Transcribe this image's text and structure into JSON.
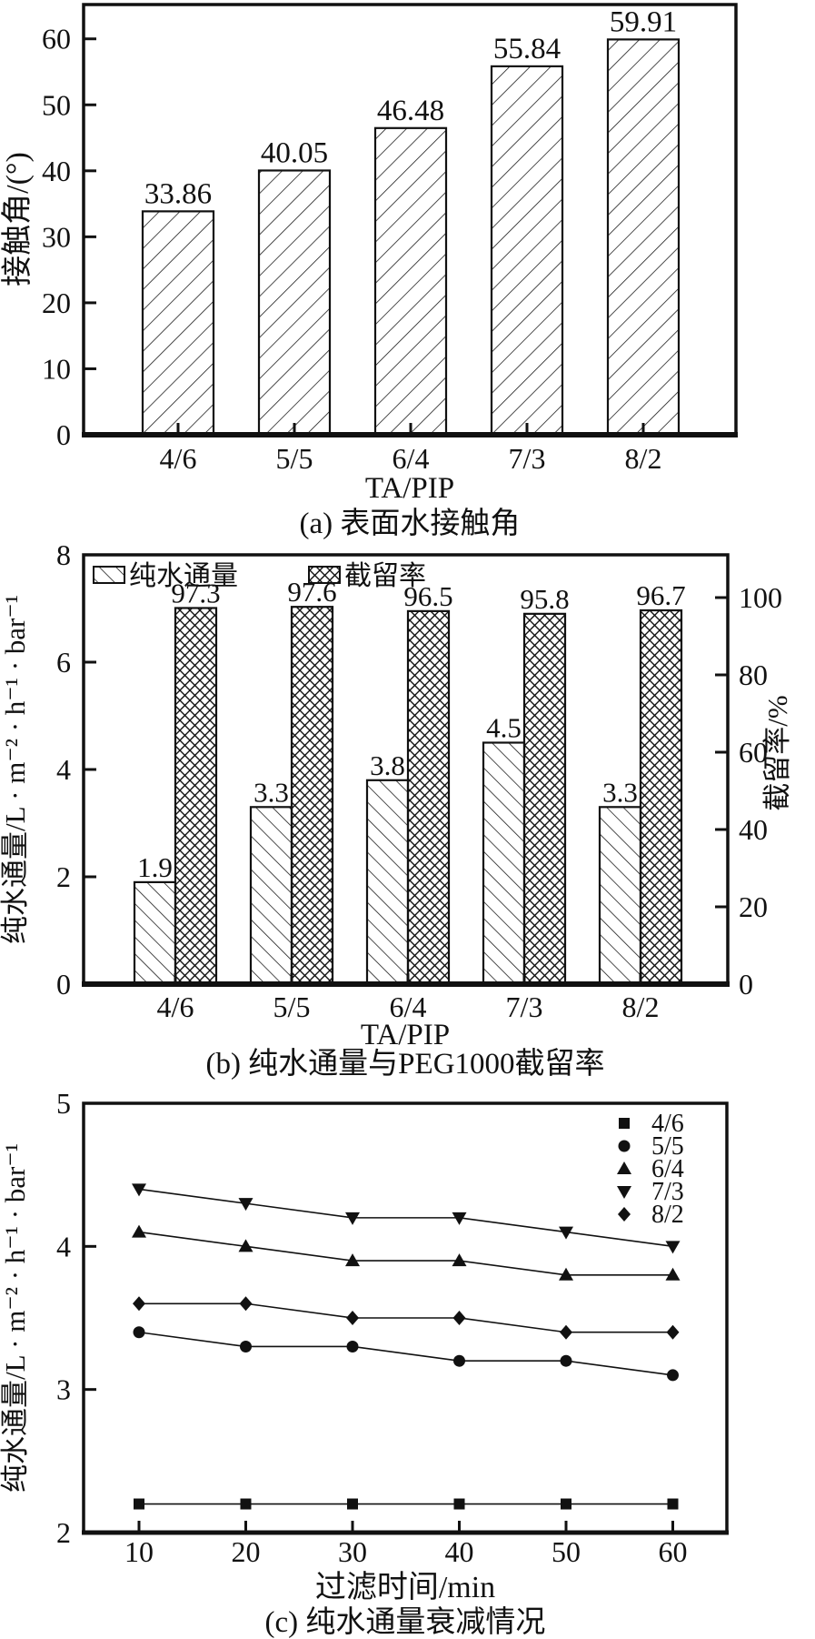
{
  "figure": {
    "description_labels": {
      "caption_a": "(a) 表面水接触角",
      "caption_b": "(b) 纯水通量与PEG1000截留率",
      "caption_c": "(c) 纯水通量衰减情况"
    }
  },
  "colors": {
    "ink": "#111111",
    "background": "#ffffff"
  },
  "chart_data": [
    {
      "id": "a",
      "type": "bar",
      "title": "(a) 表面水接触角",
      "categories": [
        "4/6",
        "5/5",
        "6/4",
        "7/3",
        "8/2"
      ],
      "values": [
        33.86,
        40.05,
        46.48,
        55.84,
        59.91
      ],
      "bar_labels": [
        "33.86",
        "40.05",
        "46.48",
        "55.84",
        "59.91"
      ],
      "hatch": "diagonal-forward",
      "xlabel": "TA/PIP",
      "ylabel": "接触角/(°)",
      "ylim": [
        0,
        65
      ],
      "yticks": [
        0,
        10,
        20,
        30,
        40,
        50,
        60
      ],
      "grid": false,
      "legend": []
    },
    {
      "id": "b",
      "type": "bar",
      "title": "(b) 纯水通量与PEG1000截留率",
      "categories": [
        "4/6",
        "5/5",
        "6/4",
        "7/3",
        "8/2"
      ],
      "series": [
        {
          "name": "纯水通量",
          "axis": "left",
          "hatch": "diagonal-back",
          "values": [
            1.9,
            3.3,
            3.8,
            4.5,
            3.3
          ],
          "labels": [
            "1.9",
            "3.3",
            "3.8",
            "4.5",
            "3.3"
          ]
        },
        {
          "name": "截留率",
          "axis": "right",
          "hatch": "crosshatch",
          "values": [
            97.3,
            97.6,
            96.5,
            95.8,
            96.7
          ],
          "labels": [
            "97.3",
            "97.6",
            "96.5",
            "95.8",
            "96.7"
          ]
        }
      ],
      "xlabel": "TA/PIP",
      "ylabel_left": "纯水通量/L · m⁻² · h⁻¹ · bar⁻¹",
      "ylabel_right": "截留率/%",
      "ylim_left": [
        0,
        8
      ],
      "yticks_left": [
        0,
        2,
        4,
        6,
        8
      ],
      "ylim_right": [
        0,
        112
      ],
      "yticks_right": [
        0,
        20,
        40,
        60,
        80,
        100
      ],
      "grid": false,
      "legend_position": "top-left-inside"
    },
    {
      "id": "c",
      "type": "line",
      "title": "(c) 纯水通量衰减情况",
      "x": [
        10,
        20,
        30,
        40,
        50,
        60
      ],
      "xticks": [
        10,
        20,
        30,
        40,
        50,
        60
      ],
      "series": [
        {
          "name": "4/6",
          "marker": "square",
          "values": [
            2.2,
            2.2,
            2.2,
            2.2,
            2.2,
            2.2
          ]
        },
        {
          "name": "5/5",
          "marker": "circle",
          "values": [
            3.4,
            3.3,
            3.3,
            3.2,
            3.2,
            3.1
          ]
        },
        {
          "name": "6/4",
          "marker": "triangle-up",
          "values": [
            4.1,
            4.0,
            3.9,
            3.9,
            3.8,
            3.8
          ]
        },
        {
          "name": "7/3",
          "marker": "triangle-down",
          "values": [
            4.4,
            4.3,
            4.2,
            4.2,
            4.1,
            4.0
          ]
        },
        {
          "name": "8/2",
          "marker": "diamond",
          "values": [
            3.6,
            3.6,
            3.5,
            3.5,
            3.4,
            3.4
          ]
        }
      ],
      "xlabel": "过滤时间/min",
      "ylabel": "纯水通量/L · m⁻² · h⁻¹ · bar⁻¹",
      "ylim": [
        2,
        5
      ],
      "yticks": [
        2,
        3,
        4,
        5
      ],
      "grid": false,
      "legend_position": "top-right-inside"
    }
  ]
}
